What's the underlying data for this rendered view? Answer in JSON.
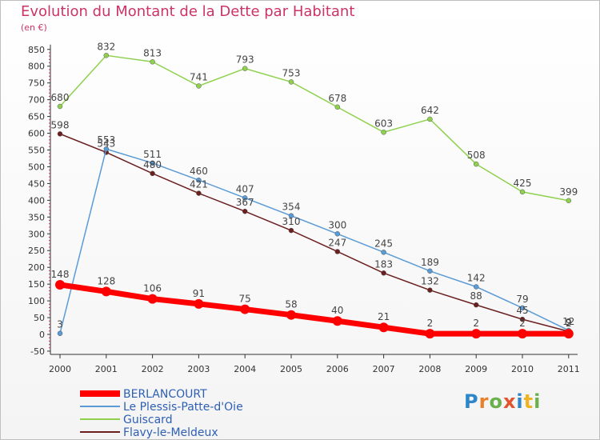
{
  "header": {
    "title": "Evolution du Montant de la Dette par Habitant",
    "unit": "(en €)"
  },
  "logo": {
    "text": "Proxiti"
  },
  "chart_data": {
    "type": "line",
    "title": "Evolution du Montant de la Dette par Habitant",
    "subtitle": "(en €)",
    "x": [
      "2000",
      "2001",
      "2002",
      "2003",
      "2004",
      "2005",
      "2006",
      "2007",
      "2008",
      "2009",
      "2010",
      "2011"
    ],
    "yticks": [
      "-50",
      "0",
      "50",
      "100",
      "150",
      "200",
      "250",
      "300",
      "350",
      "400",
      "450",
      "500",
      "550",
      "600",
      "650",
      "700",
      "750",
      "800",
      "850"
    ],
    "ylim": [
      -50,
      850
    ],
    "grid": false,
    "legend_position": "bottom-left",
    "series": [
      {
        "name": "BERLANCOURT",
        "color": "#ff0000",
        "values": [
          148,
          128,
          106,
          91,
          75,
          58,
          40,
          21,
          2,
          2,
          2,
          2
        ]
      },
      {
        "name": "Le Plessis-Patte-d'Oie",
        "color": "#5b9bd5",
        "values": [
          3,
          553,
          511,
          460,
          407,
          354,
          300,
          245,
          189,
          142,
          79,
          12
        ]
      },
      {
        "name": "Guiscard",
        "color": "#8fd14f",
        "values": [
          680,
          832,
          813,
          741,
          793,
          753,
          678,
          603,
          642,
          508,
          425,
          399
        ]
      },
      {
        "name": "Flavy-le-Meldeux",
        "color": "#6b1f1f",
        "values": [
          598,
          543,
          480,
          421,
          367,
          310,
          247,
          183,
          132,
          88,
          45,
          9
        ]
      }
    ]
  }
}
